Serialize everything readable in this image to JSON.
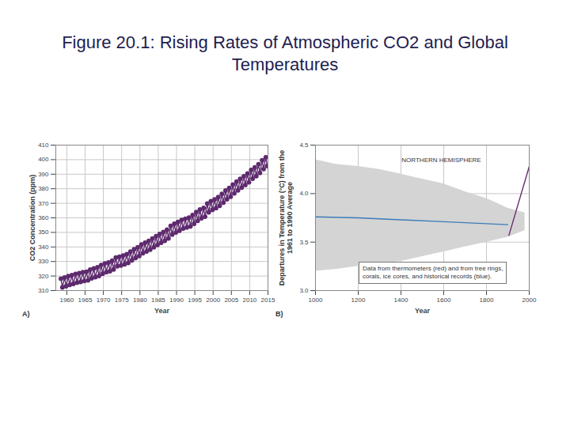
{
  "title": "Figure 20.1: Rising Rates of Atmospheric CO2 and Global Temperatures",
  "chart_data": [
    {
      "type": "line",
      "panel_label": "A)",
      "xlabel": "Year",
      "ylabel": "CO2 Concentration (ppm)",
      "xlim": [
        1957,
        2015
      ],
      "xticks": [
        1960,
        1965,
        1970,
        1975,
        1980,
        1985,
        1990,
        1995,
        2000,
        2005,
        2010,
        2015
      ],
      "ylim": [
        310,
        410
      ],
      "yticks": [
        310,
        320,
        330,
        340,
        350,
        360,
        370,
        380,
        390,
        400,
        410
      ],
      "grid": true,
      "x": [
        1958.4,
        1958.8,
        1959.4,
        1959.8,
        1960.4,
        1960.8,
        1961.4,
        1961.8,
        1962.4,
        1962.8,
        1963.4,
        1963.8,
        1964.4,
        1964.8,
        1965.4,
        1965.8,
        1966.4,
        1966.8,
        1967.4,
        1967.8,
        1968.4,
        1968.8,
        1969.4,
        1969.8,
        1970.4,
        1970.8,
        1971.4,
        1971.8,
        1972.4,
        1972.8,
        1973.4,
        1973.8,
        1974.4,
        1974.8,
        1975.4,
        1975.8,
        1976.4,
        1976.8,
        1977.4,
        1977.8,
        1978.4,
        1978.8,
        1979.4,
        1979.8,
        1980.4,
        1980.8,
        1981.4,
        1981.8,
        1982.4,
        1982.8,
        1983.4,
        1983.8,
        1984.4,
        1984.8,
        1985.4,
        1985.8,
        1986.4,
        1986.8,
        1987.4,
        1987.8,
        1988.4,
        1988.8,
        1989.4,
        1989.8,
        1990.4,
        1990.8,
        1991.4,
        1991.8,
        1992.4,
        1992.8,
        1993.4,
        1993.8,
        1994.4,
        1994.8,
        1995.4,
        1995.8,
        1996.4,
        1996.8,
        1997.4,
        1997.8,
        1998.4,
        1998.8,
        1999.4,
        1999.8,
        2000.4,
        2000.8,
        2001.4,
        2001.8,
        2002.4,
        2002.8,
        2003.4,
        2003.8,
        2004.4,
        2004.8,
        2005.4,
        2005.8,
        2006.4,
        2006.8,
        2007.4,
        2007.8,
        2008.4,
        2008.8,
        2009.4,
        2009.8,
        2010.4,
        2010.8,
        2011.4,
        2011.8,
        2012.4,
        2012.8,
        2013.4,
        2013.8,
        2014.4,
        2014.8
      ],
      "series": [
        {
          "color": "#5e2a6e",
          "marker": "circle",
          "line_style": "solid",
          "values": [
            318.2,
            312.2,
            319.0,
            313.0,
            319.9,
            313.9,
            320.6,
            314.6,
            321.5,
            315.5,
            322.0,
            316.0,
            322.6,
            316.6,
            323.0,
            317.0,
            324.4,
            318.4,
            325.2,
            319.2,
            326.0,
            320.0,
            327.6,
            321.6,
            328.7,
            322.7,
            329.3,
            323.3,
            330.5,
            324.5,
            332.7,
            326.7,
            333.2,
            327.2,
            334.1,
            328.1,
            335.0,
            329.0,
            336.8,
            330.8,
            338.4,
            332.4,
            339.8,
            333.8,
            341.7,
            335.7,
            342.9,
            336.9,
            344.1,
            338.1,
            345.8,
            339.8,
            347.4,
            341.4,
            348.9,
            342.9,
            350.2,
            344.2,
            351.9,
            345.9,
            354.5,
            348.5,
            355.9,
            349.9,
            357.2,
            351.2,
            358.6,
            352.6,
            359.4,
            353.4,
            360.1,
            354.1,
            361.9,
            355.9,
            363.9,
            357.9,
            365.7,
            359.7,
            366.8,
            360.8,
            369.8,
            363.8,
            371.5,
            365.5,
            372.7,
            366.7,
            374.3,
            368.3,
            376.5,
            370.5,
            378.8,
            372.8,
            380.5,
            374.5,
            382.8,
            376.8,
            384.9,
            378.9,
            386.8,
            380.8,
            388.6,
            382.6,
            390.4,
            384.4,
            392.9,
            386.9,
            394.7,
            388.7,
            396.9,
            390.9,
            399.5,
            393.5,
            401.6,
            395.6
          ]
        }
      ]
    },
    {
      "type": "line",
      "panel_label": "B)",
      "xlabel": "Year",
      "ylabel": "Departures in Temperature (°C) from the\n1961 to 1990 Average",
      "xlim": [
        1000,
        2000
      ],
      "xticks": [
        1000,
        1200,
        1400,
        1600,
        1800,
        2000
      ],
      "ylim": [
        3,
        4.5
      ],
      "yticks": [
        {
          "value": 3,
          "label": "3.0"
        },
        3.5,
        {
          "value": 4,
          "label": "4.0"
        },
        4.5
      ],
      "grid": true,
      "annotations": [
        "NORTHERN HEMISPHERE"
      ],
      "note": [
        "Data from thermometers (red) and from tree rings,",
        "corals, ice cores, and historical records (blue)."
      ],
      "series": [
        {
          "type": "area",
          "color": "#d4d4d4",
          "x": [
            1000,
            1100,
            1200,
            1300,
            1400,
            1500,
            1600,
            1700,
            1800,
            1900,
            1980
          ],
          "lower": [
            3.2,
            3.22,
            3.25,
            3.28,
            3.3,
            3.35,
            3.4,
            3.45,
            3.5,
            3.55,
            3.62
          ],
          "upper": [
            4.35,
            4.3,
            4.28,
            4.25,
            4.2,
            4.15,
            4.1,
            4.02,
            3.95,
            3.85,
            3.8
          ]
        },
        {
          "type": "line",
          "color": "#3b7bb8",
          "line_style": "solid",
          "x": [
            1000,
            1200,
            1400,
            1600,
            1800,
            1900
          ],
          "values": [
            3.76,
            3.75,
            3.73,
            3.71,
            3.69,
            3.68
          ]
        },
        {
          "type": "line",
          "color": "#6a2c72",
          "line_style": "solid",
          "x": [
            1905,
            2000
          ],
          "values": [
            3.57,
            4.28
          ]
        }
      ]
    }
  ]
}
